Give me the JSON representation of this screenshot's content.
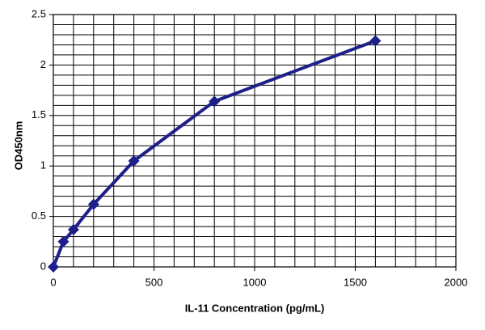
{
  "chart_data": {
    "type": "line",
    "x_label": "IL-11 Concentration (pg/mL)",
    "y_label": "OD450nm",
    "x": [
      0,
      50,
      100,
      200,
      400,
      800,
      1600
    ],
    "series": [
      {
        "color": "#1f1f8a",
        "values": [
          0,
          0.25,
          0.37,
          0.62,
          1.05,
          1.64,
          2.24
        ]
      }
    ],
    "xlim": [
      0,
      2000
    ],
    "xticks": [
      0,
      500,
      1000,
      1500,
      2000
    ],
    "ylim": [
      0,
      2.5
    ],
    "yticks": [
      0,
      0.5,
      1,
      1.5,
      2,
      2.5
    ],
    "grid": true
  }
}
